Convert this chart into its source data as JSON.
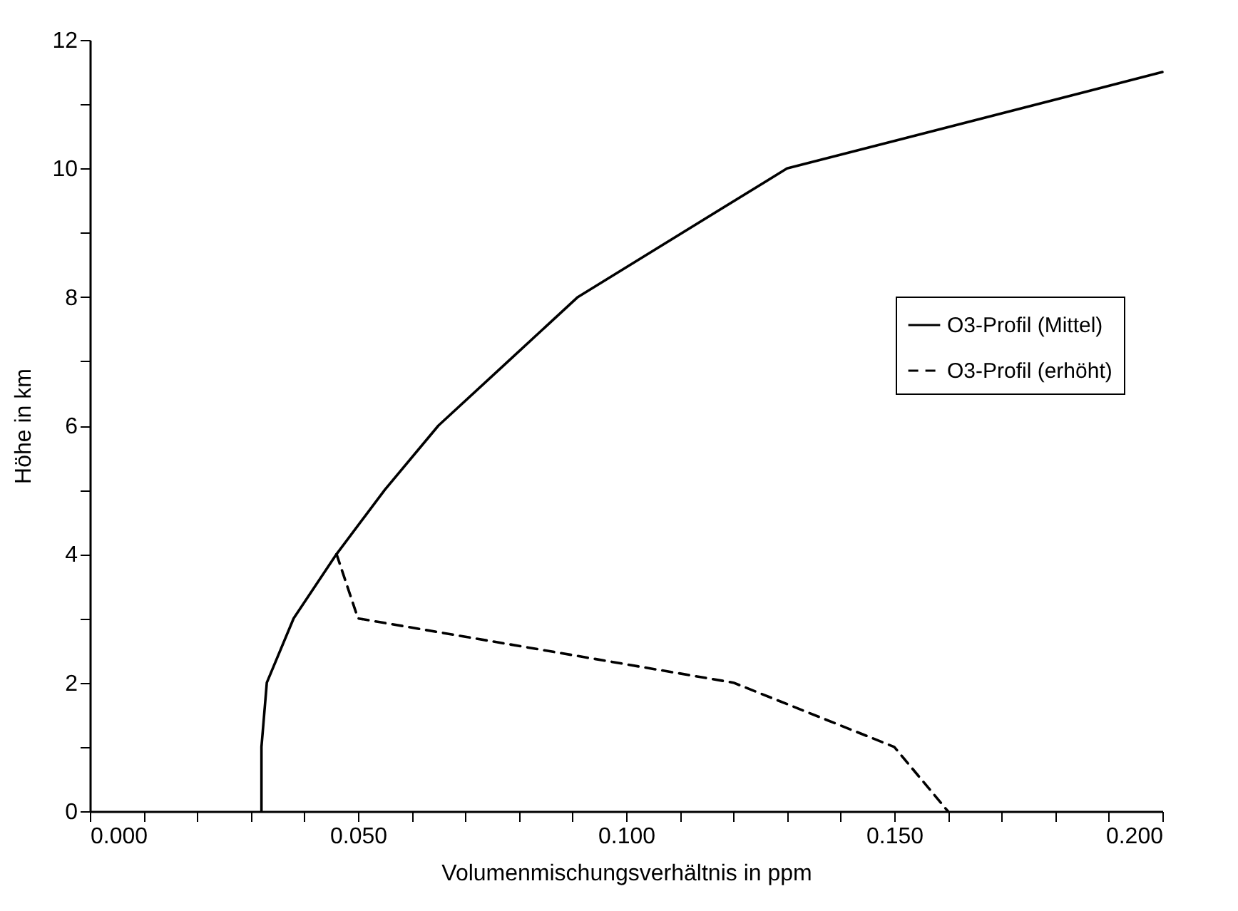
{
  "chart_data": {
    "type": "line",
    "xlabel": "Volumenmischungsverhältnis in ppm",
    "ylabel": "Höhe in km",
    "xlim": [
      0,
      0.2
    ],
    "ylim": [
      0,
      12
    ],
    "xticks": [
      {
        "value": 0,
        "label": "0.000"
      },
      {
        "value": 0.01,
        "label": null
      },
      {
        "value": 0.02,
        "label": null
      },
      {
        "value": 0.03,
        "label": null
      },
      {
        "value": 0.04,
        "label": null
      },
      {
        "value": 0.05,
        "label": "0.050"
      },
      {
        "value": 0.06,
        "label": null
      },
      {
        "value": 0.07,
        "label": null
      },
      {
        "value": 0.08,
        "label": null
      },
      {
        "value": 0.09,
        "label": null
      },
      {
        "value": 0.1,
        "label": "0.100"
      },
      {
        "value": 0.11,
        "label": null
      },
      {
        "value": 0.12,
        "label": null
      },
      {
        "value": 0.13,
        "label": null
      },
      {
        "value": 0.14,
        "label": null
      },
      {
        "value": 0.15,
        "label": "0.150"
      },
      {
        "value": 0.16,
        "label": null
      },
      {
        "value": 0.17,
        "label": null
      },
      {
        "value": 0.18,
        "label": null
      },
      {
        "value": 0.19,
        "label": null
      },
      {
        "value": 0.2,
        "label": "0.200"
      }
    ],
    "yticks": [
      0,
      {
        "value": 1,
        "label": null
      },
      2,
      {
        "value": 3,
        "label": null
      },
      4,
      {
        "value": 5,
        "label": null
      },
      6,
      {
        "value": 7,
        "label": null
      },
      8,
      {
        "value": 9,
        "label": null
      },
      10,
      {
        "value": 11,
        "label": null
      },
      12
    ],
    "legend": "right",
    "grid": false,
    "series": [
      {
        "name": "O3-Profil (Mittel)",
        "color": "#000000",
        "line_style": "solid",
        "x": [
          0.032,
          0.032,
          0.033,
          0.038,
          0.046,
          0.055,
          0.065,
          0.078,
          0.091,
          0.13,
          0.2
        ],
        "values": [
          0,
          1,
          2,
          3,
          4,
          5,
          6,
          7,
          8,
          10,
          11.5
        ]
      },
      {
        "name": "O3-Profil (erhöht)",
        "color": "#000000",
        "line_style": "dashed",
        "x": [
          0.046,
          0.05,
          0.12,
          0.15,
          0.16
        ],
        "values": [
          4,
          3,
          2,
          1,
          0
        ]
      }
    ]
  }
}
